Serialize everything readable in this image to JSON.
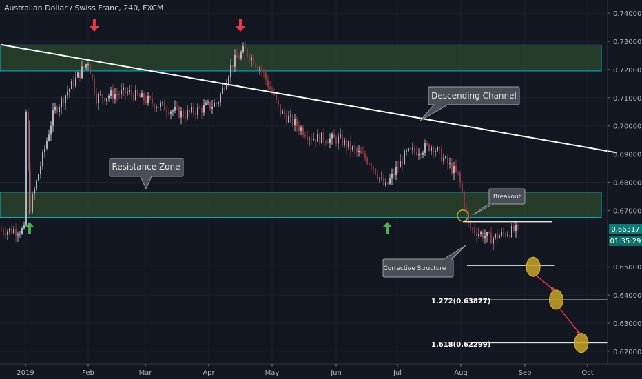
{
  "header": {
    "title": "Australian Dollar / Swiss Franc, 240, FXCM"
  },
  "colors": {
    "background": "#131722",
    "zone_fill": "#2e4a2c",
    "zone_border": "#00bcd4",
    "trendline": "#ffffff",
    "arrow_red": "#f23645",
    "arrow_green": "#4caf50",
    "target_fill": "#c9a227",
    "candle_up": "#b2b5be",
    "candle_down": "#8f3a3a",
    "price_tag": "#0a7e76",
    "countdown_tag": "#0a7e76"
  },
  "price_axis": {
    "labels": [
      "0.74000",
      "0.73000",
      "0.72000",
      "0.71000",
      "0.70000",
      "0.69000",
      "0.68000",
      "0.67000",
      "0.65000",
      "0.64000",
      "0.63000",
      "0.62000"
    ],
    "current_price": "0.66317",
    "countdown": "01:35:29"
  },
  "time_axis": {
    "labels": [
      "2019",
      "Feb",
      "Mar",
      "Apr",
      "May",
      "Jun",
      "Jul",
      "Aug",
      "Sep",
      "Oct"
    ]
  },
  "annotations": {
    "descending_channel": "Descending Channel",
    "resistance_zone": "Resistance Zone",
    "breakout": "Breakout",
    "corrective_structure": "Corrective Structure",
    "fib_1272": "1.272(0.63827)",
    "fib_1618": "1.618(0.62299)"
  },
  "chart_data": {
    "type": "candlestick",
    "ylim": [
      0.615,
      0.745
    ],
    "series": [
      {
        "x": [
          "2019-01-01",
          "2019-01-03",
          "2019-01-15",
          "2019-02-01",
          "2019-02-05",
          "2019-02-20",
          "2019-03-05",
          "2019-03-20",
          "2019-04-05",
          "2019-04-12",
          "2019-04-18",
          "2019-04-26",
          "2019-05-05",
          "2019-05-20",
          "2019-06-03",
          "2019-06-18",
          "2019-06-25",
          "2019-07-05",
          "2019-07-18",
          "2019-07-31",
          "2019-08-05",
          "2019-08-15",
          "2019-08-27"
        ],
        "values": [
          0.712,
          0.67,
          0.705,
          0.723,
          0.71,
          0.712,
          0.708,
          0.704,
          0.708,
          0.722,
          0.727,
          0.72,
          0.705,
          0.696,
          0.695,
          0.687,
          0.678,
          0.69,
          0.693,
          0.682,
          0.664,
          0.66,
          0.663
        ]
      }
    ],
    "levels": {
      "resistance_zone_upper": [
        0.7287,
        0.7195
      ],
      "resistance_zone_lower": [
        0.6765,
        0.6675
      ],
      "trendline_start": [
        "2018-12-20",
        0.7288
      ],
      "trendline_end": [
        "2019-10-15",
        0.6905
      ],
      "breakout": [
        "2019-08-02",
        0.6682
      ],
      "structure_top": 0.666,
      "structure_bottom": 0.6505,
      "targets": [
        {
          "date": "2019-09-05",
          "price": 0.65
        },
        {
          "date": "2019-09-16",
          "price": 0.6383
        },
        {
          "date": "2019-09-28",
          "price": 0.623
        }
      ],
      "fib_1272_price": 0.63827,
      "fib_1618_price": 0.62299
    },
    "markers": {
      "red_arrows": [
        "2019-02-04",
        "2019-04-16"
      ],
      "green_arrows": [
        "2019-01-03",
        "2019-06-26"
      ]
    }
  }
}
